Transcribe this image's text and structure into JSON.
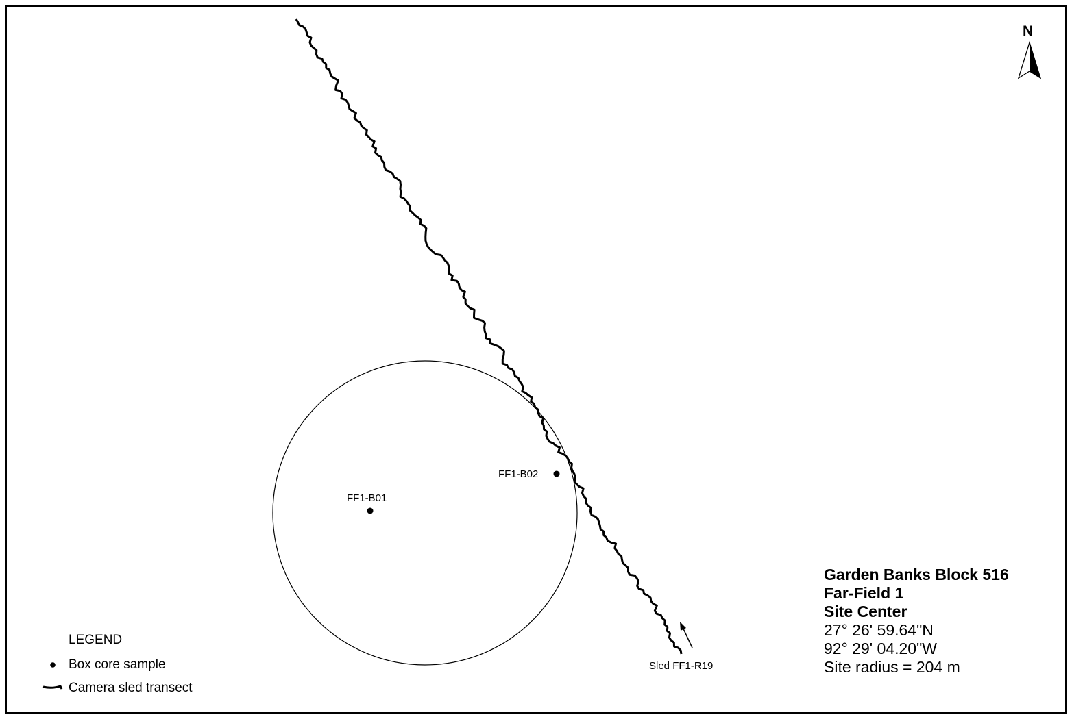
{
  "north": {
    "label": "N",
    "icon": "north-arrow-icon"
  },
  "samples": [
    {
      "id": "FF1-B01"
    },
    {
      "id": "FF1-B02"
    }
  ],
  "transect": {
    "label": "Sled FF1-R19",
    "direction_icon": "direction-arrow-icon"
  },
  "legend": {
    "title": "LEGEND",
    "items": [
      {
        "label": "Box core sample",
        "icon": "dot-icon"
      },
      {
        "label": "Camera sled transect",
        "icon": "transect-line-icon"
      }
    ]
  },
  "site_info": {
    "line1": "Garden Banks Block 516",
    "line2": "Far-Field 1",
    "line3": "Site Center",
    "lat": "27° 26' 59.64\"N",
    "lon": "92° 29' 04.20\"W",
    "radius": "Site radius = 204 m"
  }
}
